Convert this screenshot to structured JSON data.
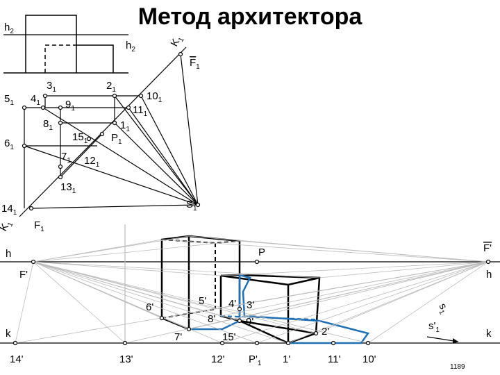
{
  "title": "Метод архитектора",
  "labels": [
    {
      "text": "h",
      "sub": "2"
    },
    {
      "text": "h",
      "sub": "2"
    },
    {
      "text": "K",
      "sub": "1"
    },
    {
      "text": "F",
      "sub": "1",
      "overline": true
    },
    {
      "text": "5",
      "sub": "1"
    },
    {
      "text": "4",
      "sub": "1"
    },
    {
      "text": "3",
      "sub": "1"
    },
    {
      "text": "2",
      "sub": "1"
    },
    {
      "text": "10",
      "sub": "1"
    },
    {
      "text": "9",
      "sub": "1"
    },
    {
      "text": "11",
      "sub": "1"
    },
    {
      "text": "8",
      "sub": "1"
    },
    {
      "text": "1",
      "sub": "1"
    },
    {
      "text": "15",
      "sub": "1"
    },
    {
      "text": "P",
      "sub": "1"
    },
    {
      "text": "6",
      "sub": "1"
    },
    {
      "text": "7",
      "sub": "1"
    },
    {
      "text": "12",
      "sub": "1"
    },
    {
      "text": "13",
      "sub": "1"
    },
    {
      "text": "S",
      "sub": "1"
    },
    {
      "text": "14",
      "sub": "1"
    },
    {
      "text": "F",
      "sub": "1"
    },
    {
      "text": "K",
      "sub": "1"
    },
    {
      "text": "h"
    },
    {
      "text": "P"
    },
    {
      "text": "F'",
      "overline": true
    },
    {
      "text": "F'"
    },
    {
      "text": "h"
    },
    {
      "text": "5'"
    },
    {
      "text": "4'"
    },
    {
      "text": "3'"
    },
    {
      "text": "6'"
    },
    {
      "text": "8'"
    },
    {
      "text": "9'"
    },
    {
      "text": "7'"
    },
    {
      "text": "15'"
    },
    {
      "text": "2'"
    },
    {
      "text": "k"
    },
    {
      "text": "k"
    },
    {
      "text": "s'",
      "sub": "1"
    },
    {
      "text": "s",
      "sub": "1"
    },
    {
      "text": "14'"
    },
    {
      "text": "13'"
    },
    {
      "text": "12'"
    },
    {
      "text": "P'",
      "sub": "1"
    },
    {
      "text": "1'"
    },
    {
      "text": "11'"
    },
    {
      "text": "10'"
    }
  ],
  "page_number": "1189"
}
